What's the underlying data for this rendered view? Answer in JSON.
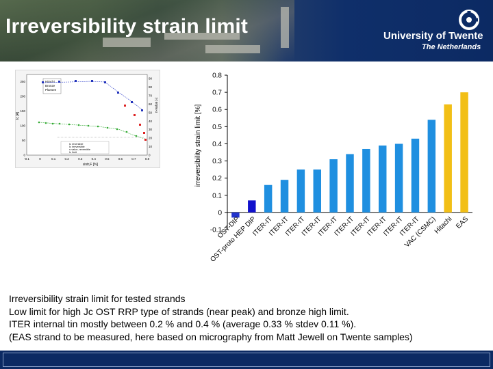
{
  "slide": {
    "title": "Irreversibility strain limit",
    "university": "University of Twente",
    "country": "The Netherlands"
  },
  "inset_chart": {
    "legend_box": [
      "Hitachi",
      "Bronze",
      "Plansee"
    ],
    "ylabel": "Ic [A]",
    "ylabel_right": "n-value [-]",
    "xlabel": "εintr,F [%]",
    "y_ticks": [
      "0",
      "50",
      "100",
      "150",
      "200",
      "250"
    ],
    "y2_ticks": [
      "0",
      "10",
      "20",
      "30",
      "40",
      "50",
      "60",
      "70",
      "80",
      "90"
    ],
    "x_ticks": [
      "-0.1",
      "0",
      "0.1",
      "0.2",
      "0.3",
      "0.4",
      "0.5",
      "0.6",
      "0.7",
      "0.8"
    ],
    "legend": [
      "Ic reversible",
      "Ic irreversible",
      "n-value, reversible",
      "n-value, irreversible",
      "Ic limit"
    ]
  },
  "chart_data": {
    "type": "bar",
    "title": "",
    "xlabel": "",
    "ylabel": "irreversibility strain limit [%]",
    "ylim": [
      -0.1,
      0.8
    ],
    "y_ticks": [
      "-0.1",
      "0",
      "0.1",
      "0.2",
      "0.3",
      "0.4",
      "0.5",
      "0.6",
      "0.7",
      "0.8"
    ],
    "categories": [
      "OST-DIP",
      "OST-proto HEP DIP",
      "ITER-IT",
      "ITER-IT",
      "ITER-IT",
      "ITER-IT",
      "ITER-IT",
      "ITER-IT",
      "ITER-IT",
      "ITER-IT",
      "ITER-IT",
      "ITER-IT",
      "VAC (CSMC)",
      "Hitachi",
      "EAS"
    ],
    "values": [
      -0.03,
      0.07,
      0.16,
      0.19,
      0.25,
      0.25,
      0.31,
      0.34,
      0.37,
      0.39,
      0.4,
      0.43,
      0.54,
      0.63,
      0.7
    ],
    "colors": [
      "#2233cc",
      "#1111cc",
      "#1f8fe0",
      "#1f8fe0",
      "#1f8fe0",
      "#1f8fe0",
      "#1f8fe0",
      "#1f8fe0",
      "#1f8fe0",
      "#1f8fe0",
      "#1f8fe0",
      "#1f8fe0",
      "#1f8fe0",
      "#f2bf16",
      "#f2bf16"
    ],
    "grid": false
  },
  "notes": [
    "Irreversibility strain limit for tested strands",
    "Low limit for high Jc OST RRP type of strands (near peak) and bronze high limit.",
    "ITER internal tin mostly between 0.2 % and 0.4 % (average 0.33 % stdev 0.11 %).",
    "(EAS strand to be measured, here based on micrography from Matt Jewell on Twente samples)"
  ]
}
